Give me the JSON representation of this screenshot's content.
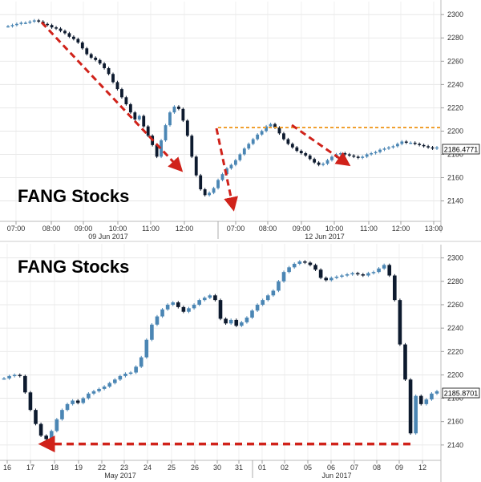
{
  "chart_data": [
    {
      "type": "candlestick",
      "title": "FANG Stocks",
      "last_price_label": "2186.4771",
      "y_ticks": [
        2140,
        2160,
        2180,
        2200,
        2220,
        2240,
        2260,
        2280,
        2300
      ],
      "ylim": [
        2128,
        2307
      ],
      "x_tick_labels": [
        "07:00",
        "08:00",
        "09:00",
        "10:00",
        "11:00",
        "12:00",
        "07:00",
        "08:00",
        "09:00",
        "10:00",
        "11:00",
        "12:00",
        "13:00"
      ],
      "x_date_labels": [
        "09 Jun 2017",
        "12 Jun 2017"
      ],
      "resistance_level": 2203,
      "colors": {
        "up": "#0d1a2e",
        "down": "#4b86b4",
        "annotation": "#d0221a",
        "resistance": "#f0a030"
      },
      "series": [
        {
          "values": [
            2290,
            2291,
            2292,
            2293,
            2293,
            2294,
            2295,
            2294,
            2292,
            2291,
            2289,
            2288,
            2286,
            2284,
            2281,
            2279,
            2276,
            2271,
            2266,
            2263,
            2261,
            2258,
            2254,
            2249,
            2242,
            2236,
            2229,
            2223,
            2216,
            2210,
            2213,
            2204,
            2196,
            2188,
            2178,
            2192,
            2205,
            2216,
            2221,
            2219,
            2209,
            2196,
            2178,
            2162,
            2150,
            2145,
            2147,
            2151,
            2158,
            2163,
            2168,
            2171,
            2175,
            2180,
            2185,
            2189,
            2193,
            2197,
            2200,
            2204,
            2206,
            2203,
            2198,
            2193,
            2189,
            2186,
            2183,
            2181,
            2179,
            2176,
            2173,
            2171,
            2172,
            2175,
            2178,
            2180,
            2181,
            2180,
            2179,
            2178,
            2177,
            2178,
            2180,
            2181,
            2182,
            2184,
            2185,
            2186,
            2187,
            2189,
            2191,
            2190,
            2190,
            2189,
            2188,
            2187,
            2186,
            2185,
            2186
          ]
        }
      ],
      "annotations": [
        {
          "from": [
            2296,
            2296
          ],
          "to": [
            2173,
            2173
          ],
          "color": "arrow"
        },
        {
          "to_price": 2142
        },
        {
          "to_price": 2170
        }
      ]
    },
    {
      "type": "candlestick",
      "title": "FANG Stocks",
      "last_price_label": "2185.8701",
      "y_ticks": [
        2140,
        2160,
        2180,
        2200,
        2220,
        2240,
        2260,
        2280,
        2300
      ],
      "ylim": [
        2131,
        2308
      ],
      "x_tick_labels": [
        "16",
        "17",
        "18",
        "19",
        "22",
        "23",
        "24",
        "25",
        "26",
        "30",
        "31",
        "01",
        "02",
        "05",
        "06",
        "07",
        "08",
        "09",
        "12"
      ],
      "x_date_labels": [
        "May 2017",
        "Jun 2017"
      ],
      "support_level": 2145,
      "series": [
        {
          "values": [
            2197,
            2199,
            2200,
            2199,
            2185,
            2170,
            2158,
            2148,
            2145,
            2152,
            2162,
            2170,
            2175,
            2178,
            2176,
            2180,
            2184,
            2186,
            2188,
            2190,
            2193,
            2196,
            2199,
            2201,
            2202,
            2207,
            2215,
            2230,
            2243,
            2250,
            2256,
            2260,
            2262,
            2258,
            2254,
            2257,
            2260,
            2264,
            2266,
            2268,
            2264,
            2248,
            2244,
            2247,
            2242,
            2245,
            2249,
            2255,
            2260,
            2264,
            2268,
            2272,
            2280,
            2288,
            2292,
            2295,
            2297,
            2296,
            2294,
            2290,
            2283,
            2281,
            2283,
            2284,
            2285,
            2286,
            2287,
            2286,
            2285,
            2287,
            2288,
            2291,
            2294,
            2285,
            2264,
            2226,
            2196,
            2150,
            2182,
            2175,
            2179,
            2184,
            2186
          ]
        }
      ]
    }
  ]
}
